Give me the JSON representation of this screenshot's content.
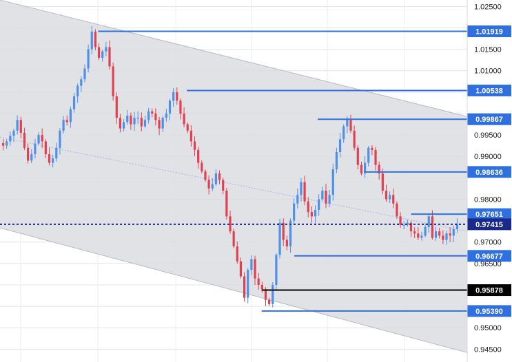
{
  "chart_data": {
    "type": "candlestick",
    "title": "",
    "xlabel": "",
    "ylabel": "",
    "ylim": [
      0.942,
      1.0265
    ],
    "y_ticks": [
      "1.02500",
      "1.01500",
      "1.01000",
      "0.99500",
      "0.99000",
      "0.98000",
      "0.97000",
      "0.96500",
      "0.95000",
      "0.94500"
    ],
    "grid": true,
    "colors": {
      "up": "#4e8fe8",
      "down": "#e0404f",
      "level": "#2f6fe0",
      "current": "#1a2a8a",
      "support": "#000000",
      "channel_fill": "#dcdde2",
      "channel_edge": "#b8bac2",
      "midline": "#aab4ee"
    },
    "channel": {
      "upper": [
        [
          0,
          1.0265
        ],
        [
          1,
          0.9993
        ]
      ],
      "lower": [
        [
          0,
          0.9733
        ],
        [
          1,
          0.9442
        ]
      ],
      "midline": [
        [
          0,
          0.9945
        ],
        [
          1,
          0.9725
        ]
      ]
    },
    "levels": [
      {
        "label": "1.01919",
        "value": 1.01919,
        "start": 0.21,
        "kind": "resistance"
      },
      {
        "label": "1.00538",
        "value": 1.00538,
        "start": 0.4,
        "kind": "resistance"
      },
      {
        "label": "0.99867",
        "value": 0.99867,
        "start": 0.68,
        "kind": "resistance"
      },
      {
        "label": "0.98636",
        "value": 0.98636,
        "start": 0.78,
        "kind": "resistance"
      },
      {
        "label": "0.97651",
        "value": 0.97651,
        "start": 0.88,
        "kind": "resistance"
      },
      {
        "label": "0.97415",
        "value": 0.97415,
        "start": 0.0,
        "kind": "current"
      },
      {
        "label": "0.96677",
        "value": 0.96677,
        "start": 0.63,
        "kind": "support"
      },
      {
        "label": "0.95878",
        "value": 0.95878,
        "start": 0.56,
        "kind": "support-black"
      },
      {
        "label": "0.95390",
        "value": 0.9539,
        "start": 0.56,
        "kind": "support"
      }
    ],
    "close_path": [
      0.9925,
      0.9935,
      0.9948,
      0.996,
      0.9985,
      0.9955,
      0.992,
      0.989,
      0.9905,
      0.993,
      0.995,
      0.9935,
      0.9905,
      0.9885,
      0.9895,
      0.992,
      0.996,
      0.9985,
      0.998,
      1.001,
      1.004,
      1.0065,
      1.008,
      1.0105,
      1.015,
      1.0191,
      1.0155,
      1.013,
      1.0145,
      1.0155,
      1.011,
      1.004,
      0.999,
      0.9965,
      0.998,
      0.9995,
      0.9975,
      0.999,
      0.999,
      0.997,
      0.9985,
      1.0005,
      1.0,
      0.9985,
      0.9965,
      0.999,
      1.0,
      1.003,
      1.005,
      1.003,
      1.0,
      0.9975,
      0.996,
      0.9935,
      0.9915,
      0.9885,
      0.9865,
      0.9845,
      0.9825,
      0.9835,
      0.986,
      0.9845,
      0.982,
      0.976,
      0.9725,
      0.969,
      0.9655,
      0.962,
      0.957,
      0.9635,
      0.966,
      0.9615,
      0.96,
      0.959,
      0.9565,
      0.9555,
      0.96,
      0.967,
      0.9745,
      0.9705,
      0.969,
      0.975,
      0.979,
      0.981,
      0.984,
      0.9795,
      0.977,
      0.976,
      0.9775,
      0.98,
      0.982,
      0.979,
      0.981,
      0.987,
      0.991,
      0.994,
      0.997,
      0.9985,
      0.996,
      0.992,
      0.988,
      0.986,
      0.9885,
      0.992,
      0.9915,
      0.988,
      0.986,
      0.982,
      0.98,
      0.981,
      0.979,
      0.976,
      0.974,
      0.974,
      0.9745,
      0.9725,
      0.972,
      0.971,
      0.9715,
      0.9735,
      0.976,
      0.971,
      0.9725,
      0.9715,
      0.9705,
      0.972,
      0.9715,
      0.973,
      0.9742
    ]
  }
}
